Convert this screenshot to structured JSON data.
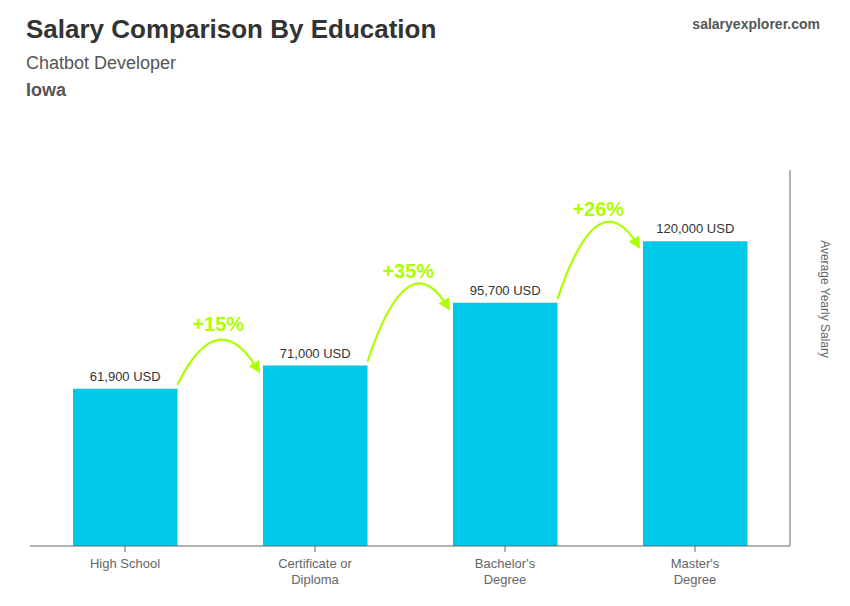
{
  "chart_data": {
    "type": "bar",
    "title": "Salary Comparison By Education",
    "subtitle": "Chatbot Developer",
    "location": "Iowa",
    "source": "salaryexplorer.com",
    "ylabel": "Average Yearly Salary",
    "categories": [
      "High School",
      "Certificate or\nDiploma",
      "Bachelor's\nDegree",
      "Master's\nDegree"
    ],
    "values": [
      61900,
      71000,
      95700,
      120000
    ],
    "value_labels": [
      "61,900 USD",
      "71,000 USD",
      "95,700 USD",
      "120,000 USD"
    ],
    "data_labels": true,
    "color": "#00c8e8",
    "ylim": [
      0,
      148000
    ],
    "tick_labels": "x",
    "grid": false,
    "annotations": [
      {
        "text": "+15%",
        "color": "#aaff00"
      },
      {
        "text": "+35%",
        "color": "#aaff00"
      },
      {
        "text": "+26%",
        "color": "#aaff00"
      }
    ]
  }
}
